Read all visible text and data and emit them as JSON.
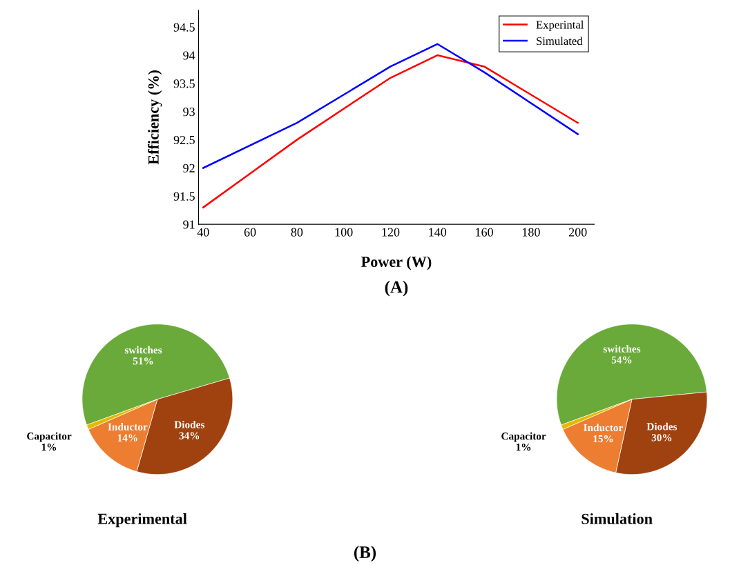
{
  "chart_data": [
    {
      "type": "line",
      "xlabel": "Power (W)",
      "ylabel": "Efficiency (%)",
      "x": [
        40,
        80,
        120,
        140,
        160,
        200
      ],
      "series": [
        {
          "name": "Experintal",
          "color": "#ff0000",
          "values": [
            91.3,
            92.5,
            93.6,
            94.0,
            93.8,
            92.8
          ]
        },
        {
          "name": "Simulated",
          "color": "#0000ff",
          "values": [
            92.0,
            92.8,
            93.8,
            94.2,
            93.7,
            92.6
          ]
        }
      ],
      "xlim": [
        38,
        207
      ],
      "xticks": [
        40,
        60,
        80,
        100,
        120,
        140,
        160,
        180,
        200
      ],
      "ylim": [
        91,
        94.8
      ],
      "yticks": [
        91,
        91.5,
        92,
        92.5,
        93,
        93.5,
        94,
        94.5
      ],
      "grid": false,
      "legend": "top right",
      "annotations": [
        "(A)"
      ]
    },
    {
      "type": "pie",
      "title": "Experimental",
      "categories": [
        "switches",
        "Diodes",
        "Inductor",
        "Capacitor"
      ],
      "values": [
        51,
        34,
        14,
        1
      ],
      "value_labels": [
        "51%",
        "34%",
        "14%",
        "1%"
      ],
      "colors": [
        "#6aaa3a",
        "#a0420f",
        "#ed7d31",
        "#e6b800"
      ],
      "annotations": [
        "(B)"
      ]
    },
    {
      "type": "pie",
      "title": "Simulation",
      "categories": [
        "switches",
        "Diodes",
        "Inductor",
        "Capacitor"
      ],
      "values": [
        54,
        30,
        15,
        1
      ],
      "value_labels": [
        "54%",
        "30%",
        "15%",
        "1%"
      ],
      "colors": [
        "#6aaa3a",
        "#a0420f",
        "#ed7d31",
        "#e6b800"
      ]
    }
  ]
}
